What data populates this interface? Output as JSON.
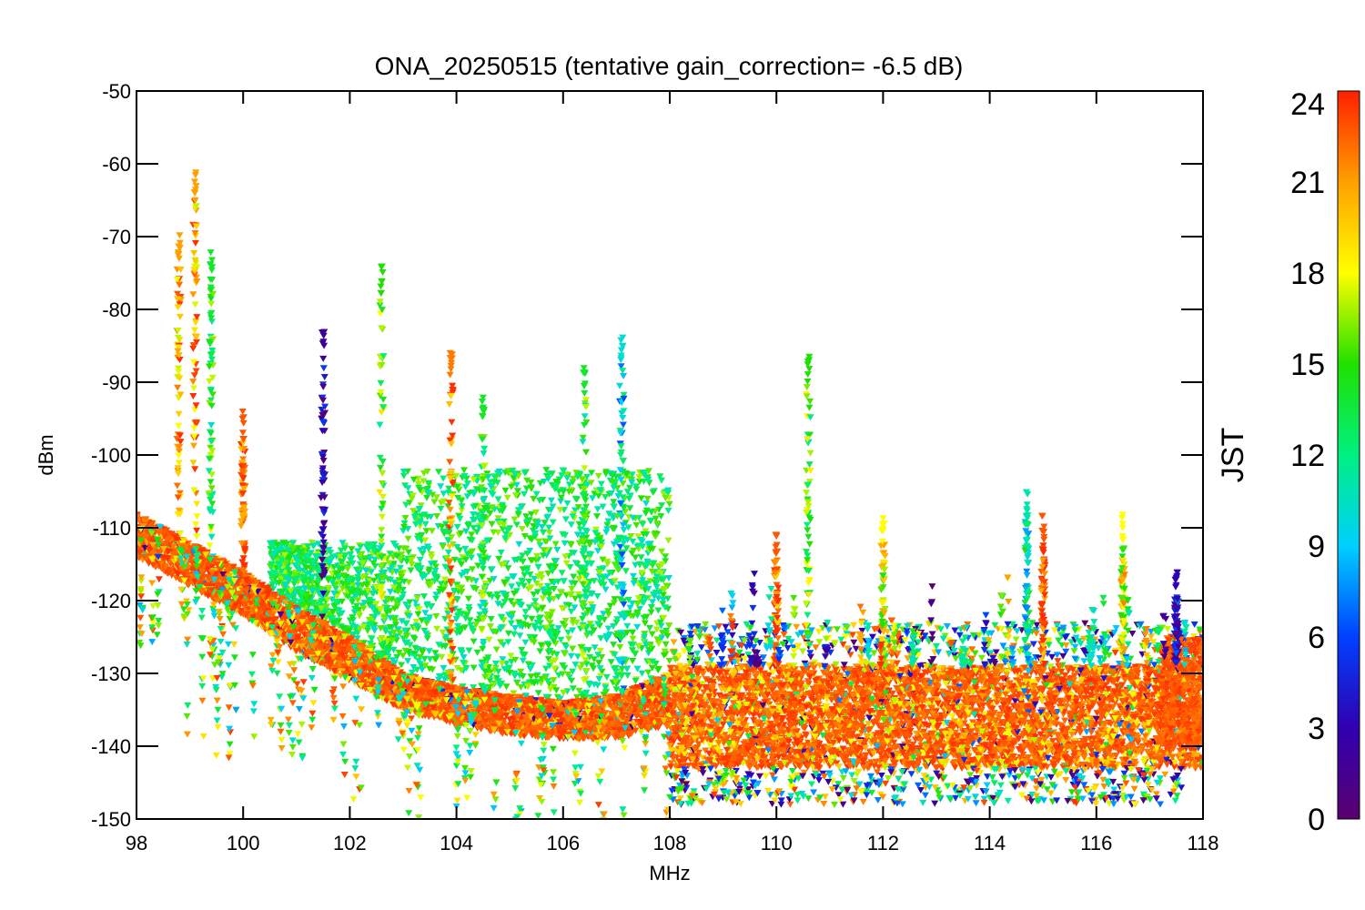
{
  "chart_data": {
    "type": "scatter",
    "title": "ONA_20250515 (tentative gain_correction= -6.5 dB)",
    "xlabel": "MHz",
    "ylabel": "dBm",
    "xlim": [
      98,
      118
    ],
    "ylim": [
      -150,
      -50
    ],
    "x_ticks": [
      "98",
      "100",
      "102",
      "104",
      "106",
      "108",
      "110",
      "112",
      "114",
      "116",
      "118"
    ],
    "y_ticks": [
      "-50",
      "-60",
      "-70",
      "-80",
      "-90",
      "-100",
      "-110",
      "-120",
      "-130",
      "-140",
      "-150"
    ],
    "marker": "inverted-triangle",
    "grid": false,
    "colorbar": {
      "label": "JST",
      "range": [
        0,
        24
      ],
      "ticks": [
        "24",
        "21",
        "18",
        "15",
        "12",
        "9",
        "6",
        "3",
        "0"
      ],
      "colormap": "rainbow"
    },
    "noise_floor": {
      "description_points_x": [
        98,
        99,
        100,
        101,
        102,
        103,
        104,
        105,
        106,
        107,
        108
      ],
      "upper_y": [
        -108,
        -112,
        -116,
        -121,
        -125,
        -130,
        -132,
        -133,
        -134,
        -133,
        -130
      ],
      "lower_y": [
        -114,
        -118,
        -122,
        -127,
        -131,
        -135,
        -137,
        -138.5,
        -139,
        -139,
        -137
      ],
      "high_band_upper_y": -129,
      "high_band_lower_y": -143,
      "high_band_x": [
        108,
        117.3
      ]
    },
    "series": [
      {
        "x": 98.8,
        "y_top": -73,
        "jst_top": 21
      },
      {
        "x": 99.1,
        "y_top": -65,
        "jst_top": 21
      },
      {
        "x": 99.4,
        "y_top": -76,
        "jst_top": 14
      },
      {
        "x": 100.0,
        "y_top": -98,
        "jst_top": 23
      },
      {
        "x": 101.5,
        "y_top": -87,
        "jst_top": 2
      },
      {
        "x": 102.6,
        "y_top": -78,
        "jst_top": 15
      },
      {
        "x": 103.9,
        "y_top": -89,
        "jst_top": 22
      },
      {
        "x": 104.5,
        "y_top": -96,
        "jst_top": 14
      },
      {
        "x": 106.4,
        "y_top": -92,
        "jst_top": 14
      },
      {
        "x": 107.1,
        "y_top": -87,
        "jst_top": 10
      },
      {
        "x": 110.0,
        "y_top": -114,
        "jst_top": 23
      },
      {
        "x": 110.6,
        "y_top": -90,
        "jst_top": 15
      },
      {
        "x": 112.0,
        "y_top": -112,
        "jst_top": 18
      },
      {
        "x": 114.7,
        "y_top": -109,
        "jst_top": 11
      },
      {
        "x": 115.0,
        "y_top": -112,
        "jst_top": 23
      },
      {
        "x": 116.5,
        "y_top": -112,
        "jst_top": 18
      },
      {
        "x": 117.5,
        "y_top": -119,
        "jst_top": 3
      }
    ]
  }
}
